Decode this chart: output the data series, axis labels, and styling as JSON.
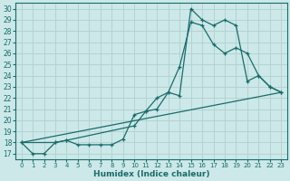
{
  "xlabel": "Humidex (Indice chaleur)",
  "bg_color": "#cce8e8",
  "line_color": "#1a6b6b",
  "grid_color": "#b0d0d0",
  "xlim": [
    -0.5,
    23.5
  ],
  "ylim": [
    16.5,
    30.5
  ],
  "xticks": [
    0,
    1,
    2,
    3,
    4,
    5,
    6,
    7,
    8,
    9,
    10,
    11,
    12,
    13,
    14,
    15,
    16,
    17,
    18,
    19,
    20,
    21,
    22,
    23
  ],
  "yticks": [
    17,
    18,
    19,
    20,
    21,
    22,
    23,
    24,
    25,
    26,
    27,
    28,
    29,
    30
  ],
  "line1_x": [
    0,
    1,
    2,
    3,
    4,
    5,
    6,
    7,
    8,
    9,
    10,
    11,
    12,
    13,
    14,
    15,
    16,
    17,
    18,
    19,
    20,
    21,
    22,
    23
  ],
  "line1_y": [
    18,
    17,
    17,
    18,
    18.2,
    17.8,
    17.8,
    17.8,
    17.8,
    18.3,
    20.5,
    20.8,
    22,
    22.5,
    22.2,
    30,
    29,
    28.5,
    29,
    28.5,
    23.5,
    24,
    23,
    22.5
  ],
  "line2_x": [
    0,
    3,
    4,
    10,
    11,
    12,
    13,
    14,
    15,
    16,
    17,
    18,
    19,
    20,
    21,
    22,
    23
  ],
  "line2_y": [
    18,
    18,
    18.2,
    19.5,
    20.8,
    21,
    22.5,
    24.8,
    28.8,
    28.5,
    26.8,
    26,
    26.5,
    26,
    24,
    23,
    22.5
  ],
  "line3_x": [
    0,
    23
  ],
  "line3_y": [
    18,
    22.5
  ]
}
